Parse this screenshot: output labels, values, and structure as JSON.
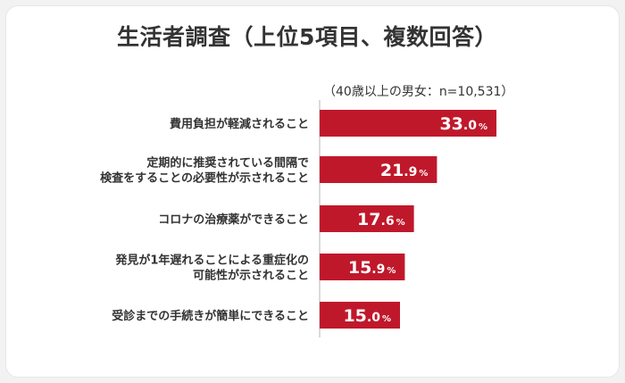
{
  "chart_data": {
    "type": "bar",
    "orientation": "horizontal",
    "title": "生活者調査（上位5項目、複数回答）",
    "note": "（40歳以上の男女：n=10,531）",
    "unit": "%",
    "bar_color": "#c0182b",
    "categories": [
      [
        "費用負担が軽減されること"
      ],
      [
        "定期的に推奨されている間隔で",
        "検査をすることの必要性が示されること"
      ],
      [
        "コロナの治療薬ができること"
      ],
      [
        "発見が1年遅れることによる重症化の",
        "可能性が示されること"
      ],
      [
        "受診までの手続きが簡単にできること"
      ]
    ],
    "values": [
      33.0,
      21.9,
      17.6,
      15.9,
      15.0
    ],
    "value_labels": [
      "33.0",
      "21.9",
      "17.6",
      "15.9",
      "15.0"
    ]
  }
}
